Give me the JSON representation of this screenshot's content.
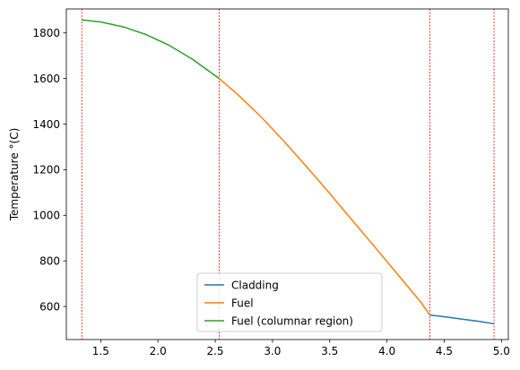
{
  "chart_data": {
    "type": "line",
    "title": "",
    "xlabel": "",
    "ylabel": "Temperature °(C)",
    "xlim": [
      1.2,
      5.06
    ],
    "ylim": [
      455,
      1905
    ],
    "x_ticks": [
      1.5,
      2.0,
      2.5,
      3.0,
      3.5,
      4.0,
      4.5,
      5.0
    ],
    "x_tick_labels": [
      "1.5",
      "2.0",
      "2.5",
      "3.0",
      "3.5",
      "4.0",
      "4.5",
      "5.0"
    ],
    "y_ticks": [
      600,
      800,
      1000,
      1200,
      1400,
      1600,
      1800
    ],
    "y_tick_labels": [
      "600",
      "800",
      "1000",
      "1200",
      "1400",
      "1600",
      "1800"
    ],
    "grid": false,
    "legend_position": "bottom-center",
    "vertical_lines": {
      "x": [
        1.335,
        2.535,
        4.375,
        4.935
      ],
      "color": "#ff0000",
      "style": "dashed"
    },
    "series": [
      {
        "name": "Cladding",
        "color": "#1f77b4",
        "x": [
          4.375,
          4.5,
          4.65,
          4.8,
          4.935
        ],
        "y": [
          562,
          555,
          545,
          535,
          524
        ]
      },
      {
        "name": "Fuel",
        "color": "#ff7f0e",
        "x": [
          2.535,
          2.7,
          2.9,
          3.1,
          3.3,
          3.5,
          3.7,
          3.9,
          4.1,
          4.3,
          4.375
        ],
        "y": [
          1600,
          1528,
          1432,
          1325,
          1212,
          1096,
          976,
          857,
          737,
          616,
          562
        ]
      },
      {
        "name": "Fuel (columnar region)",
        "color": "#2ca02c",
        "x": [
          1.335,
          1.5,
          1.7,
          1.9,
          2.1,
          2.3,
          2.535
        ],
        "y": [
          1857,
          1848,
          1826,
          1792,
          1745,
          1685,
          1600
        ]
      }
    ]
  }
}
